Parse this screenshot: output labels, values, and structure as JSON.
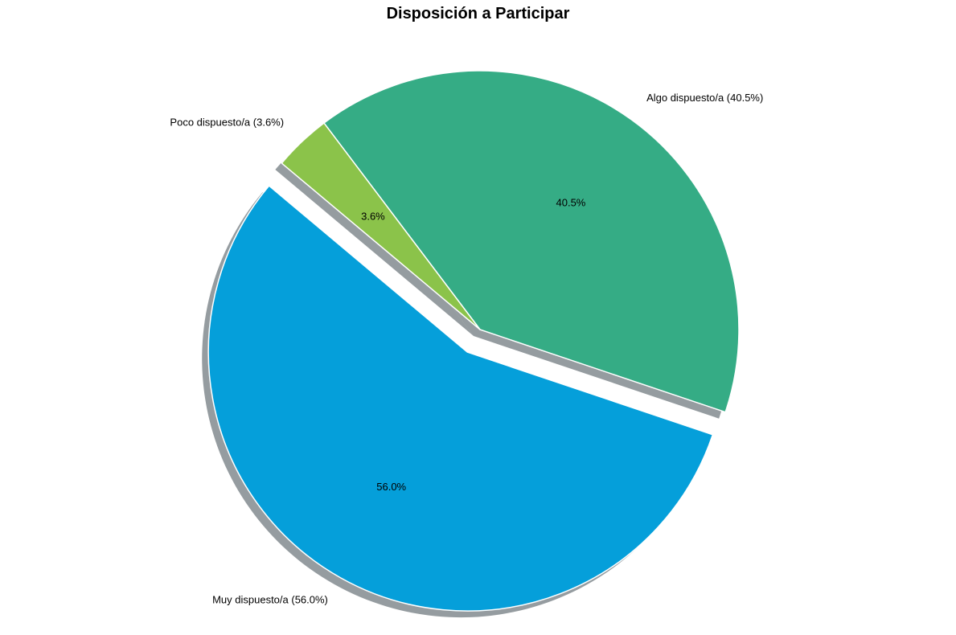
{
  "chart_data": {
    "type": "pie",
    "title": "Disposición a Participar",
    "slices": [
      {
        "label": "Muy dispuesto/a (56.0%)",
        "value": 56.0,
        "pct_label": "56.0%",
        "color": "#059FDA",
        "exploded": true
      },
      {
        "label": "Algo dispuesto/a (40.5%)",
        "value": 40.5,
        "pct_label": "40.5%",
        "color": "#35AC85",
        "exploded": false
      },
      {
        "label": "Poco dispuesto/a (3.6%)",
        "value": 3.6,
        "pct_label": "3.6%",
        "color": "#8BC34A",
        "exploded": false
      }
    ],
    "start_angle_deg": 140,
    "direction": "counterclockwise",
    "shadow": true,
    "legend": "none"
  }
}
